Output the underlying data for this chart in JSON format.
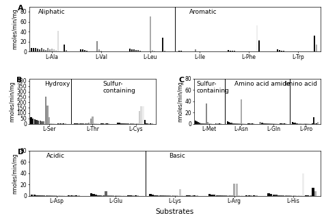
{
  "panels": {
    "A": {
      "label": "A",
      "title_left": "Aliphatic",
      "title_right": "Aromatic",
      "ylim": [
        0,
        90
      ],
      "yticks": [
        0,
        20,
        40,
        60,
        80
      ],
      "ylabel": "nmoles/min/mg",
      "substrates": [
        "L-Ala",
        "L-Val",
        "L-Leu",
        "L-Ile",
        "L-Phe",
        "L-Trp"
      ],
      "divider_after": 3,
      "bar_data": {
        "L-Ala": [
          8,
          8,
          7,
          6,
          5,
          8,
          4,
          3,
          8,
          5,
          6,
          4,
          3,
          42,
          2,
          1,
          14,
          3,
          1,
          1
        ],
        "L-Val": [
          5,
          4,
          3,
          2,
          1,
          1,
          1,
          1,
          21,
          4,
          2,
          1,
          1,
          1,
          1,
          1,
          1,
          1,
          1,
          1
        ],
        "L-Leu": [
          6,
          5,
          4,
          3,
          3,
          2,
          1,
          1,
          1,
          1,
          70,
          3,
          2,
          1,
          1,
          1,
          28,
          2,
          1,
          1
        ],
        "L-Ile": [
          2,
          2,
          1,
          1,
          1,
          1,
          1,
          1,
          5,
          1,
          1,
          1,
          1,
          1,
          1,
          1,
          1,
          1,
          1,
          1
        ],
        "L-Phe": [
          3,
          2,
          2,
          2,
          1,
          1,
          1,
          1,
          1,
          1,
          1,
          1,
          1,
          1,
          53,
          22,
          1,
          1,
          1,
          1
        ],
        "L-Trp": [
          4,
          3,
          2,
          2,
          1,
          1,
          1,
          1,
          1,
          1,
          1,
          1,
          1,
          1,
          1,
          1,
          1,
          1,
          32,
          14
        ]
      }
    },
    "B": {
      "label": "B",
      "title_left": "Hydroxy",
      "title_right": "Sulfur-\ncontaining",
      "ylim": [
        0,
        420
      ],
      "yticks": [
        0,
        50,
        100,
        150,
        200,
        250,
        300,
        350,
        400
      ],
      "ylabel": "nmoles/min/mg",
      "substrates": [
        "L-Ser",
        "L-Thr",
        "L-Cys"
      ],
      "divider_after": 1,
      "bar_data": {
        "L-Ser": [
          60,
          50,
          40,
          35,
          30,
          28,
          25,
          20,
          250,
          170,
          60,
          1,
          1,
          1,
          1,
          1,
          1,
          1,
          1,
          1
        ],
        "L-Thr": [
          5,
          4,
          3,
          2,
          1,
          1,
          1,
          1,
          12,
          45,
          68,
          1,
          1,
          1,
          1,
          1,
          1,
          1,
          1,
          1
        ],
        "L-Cys": [
          8,
          7,
          5,
          4,
          3,
          2,
          1,
          1,
          1,
          1,
          1,
          1,
          120,
          165,
          160,
          35,
          1,
          1,
          1,
          1
        ]
      }
    },
    "C": {
      "label": "C",
      "title_left": "Sulfur-\ncontaining",
      "title_mid": "Amino acid amide",
      "title_right": "Imino acid",
      "ylim": [
        0,
        80
      ],
      "yticks": [
        0,
        20,
        40,
        60,
        80
      ],
      "ylabel": "nmoles/min/mg",
      "substrates": [
        "L-Met",
        "L-Asn",
        "L-Gln",
        "L-Pro"
      ],
      "divider_after_1": 1,
      "divider_after_2": 3,
      "bar_data": {
        "L-Met": [
          5,
          4,
          3,
          2,
          1,
          1,
          1,
          1,
          36,
          3,
          1,
          1,
          1,
          1,
          1,
          1,
          1,
          1,
          1,
          1
        ],
        "L-Asn": [
          4,
          3,
          2,
          2,
          1,
          1,
          1,
          1,
          1,
          1,
          43,
          1,
          1,
          1,
          1,
          1,
          1,
          1,
          1,
          1
        ],
        "L-Gln": [
          3,
          2,
          2,
          1,
          1,
          1,
          1,
          1,
          1,
          1,
          1,
          1,
          1,
          1,
          1,
          1,
          1,
          1,
          1,
          1
        ],
        "L-Pro": [
          3,
          2,
          2,
          1,
          1,
          1,
          1,
          1,
          1,
          1,
          1,
          1,
          1,
          1,
          1,
          1,
          12,
          1,
          1,
          3
        ]
      }
    },
    "D": {
      "label": "D",
      "title_left": "Acidic",
      "title_right": "Basic",
      "ylim": [
        0,
        80
      ],
      "yticks": [
        0,
        20,
        40,
        60,
        80
      ],
      "ylabel": "nmoles/min/mg",
      "xlabel": "Substrates",
      "substrates": [
        "L-Asp",
        "L-Glu",
        "L-Lys",
        "L-Arg",
        "L-His"
      ],
      "divider_after": 2,
      "bar_data": {
        "L-Asp": [
          2,
          2,
          1,
          1,
          1,
          1,
          1,
          1,
          1,
          1,
          1,
          1,
          1,
          1,
          1,
          1,
          1,
          1,
          1,
          1
        ],
        "L-Glu": [
          4,
          3,
          2,
          1,
          1,
          1,
          8,
          1,
          1,
          1,
          1,
          1,
          1,
          1,
          1,
          1,
          1,
          1,
          1,
          1
        ],
        "L-Lys": [
          3,
          2,
          1,
          1,
          1,
          1,
          1,
          1,
          1,
          1,
          1,
          1,
          12,
          1,
          1,
          1,
          1,
          1,
          1,
          1
        ],
        "L-Arg": [
          3,
          2,
          2,
          1,
          1,
          1,
          1,
          1,
          1,
          1,
          22,
          22,
          1,
          1,
          1,
          1,
          1,
          1,
          1,
          1
        ],
        "L-His": [
          4,
          3,
          2,
          2,
          1,
          1,
          1,
          1,
          1,
          1,
          1,
          1,
          1,
          1,
          40,
          1,
          1,
          1,
          14,
          8
        ]
      }
    }
  },
  "bar_colors": [
    "#000000",
    "#111111",
    "#222222",
    "#333333",
    "#444444",
    "#555555",
    "#666666",
    "#777777",
    "#888888",
    "#999999",
    "#aaaaaa",
    "#bbbbbb",
    "#cccccc",
    "#dddddd",
    "#eeeeee",
    "#000000",
    "#111111",
    "#888888",
    "#000000",
    "#aaaaaa"
  ],
  "bg_color": "#ffffff",
  "panel_label_fontsize": 8,
  "tick_fontsize": 5.5,
  "label_fontsize": 5.5,
  "title_fontsize": 6.5
}
